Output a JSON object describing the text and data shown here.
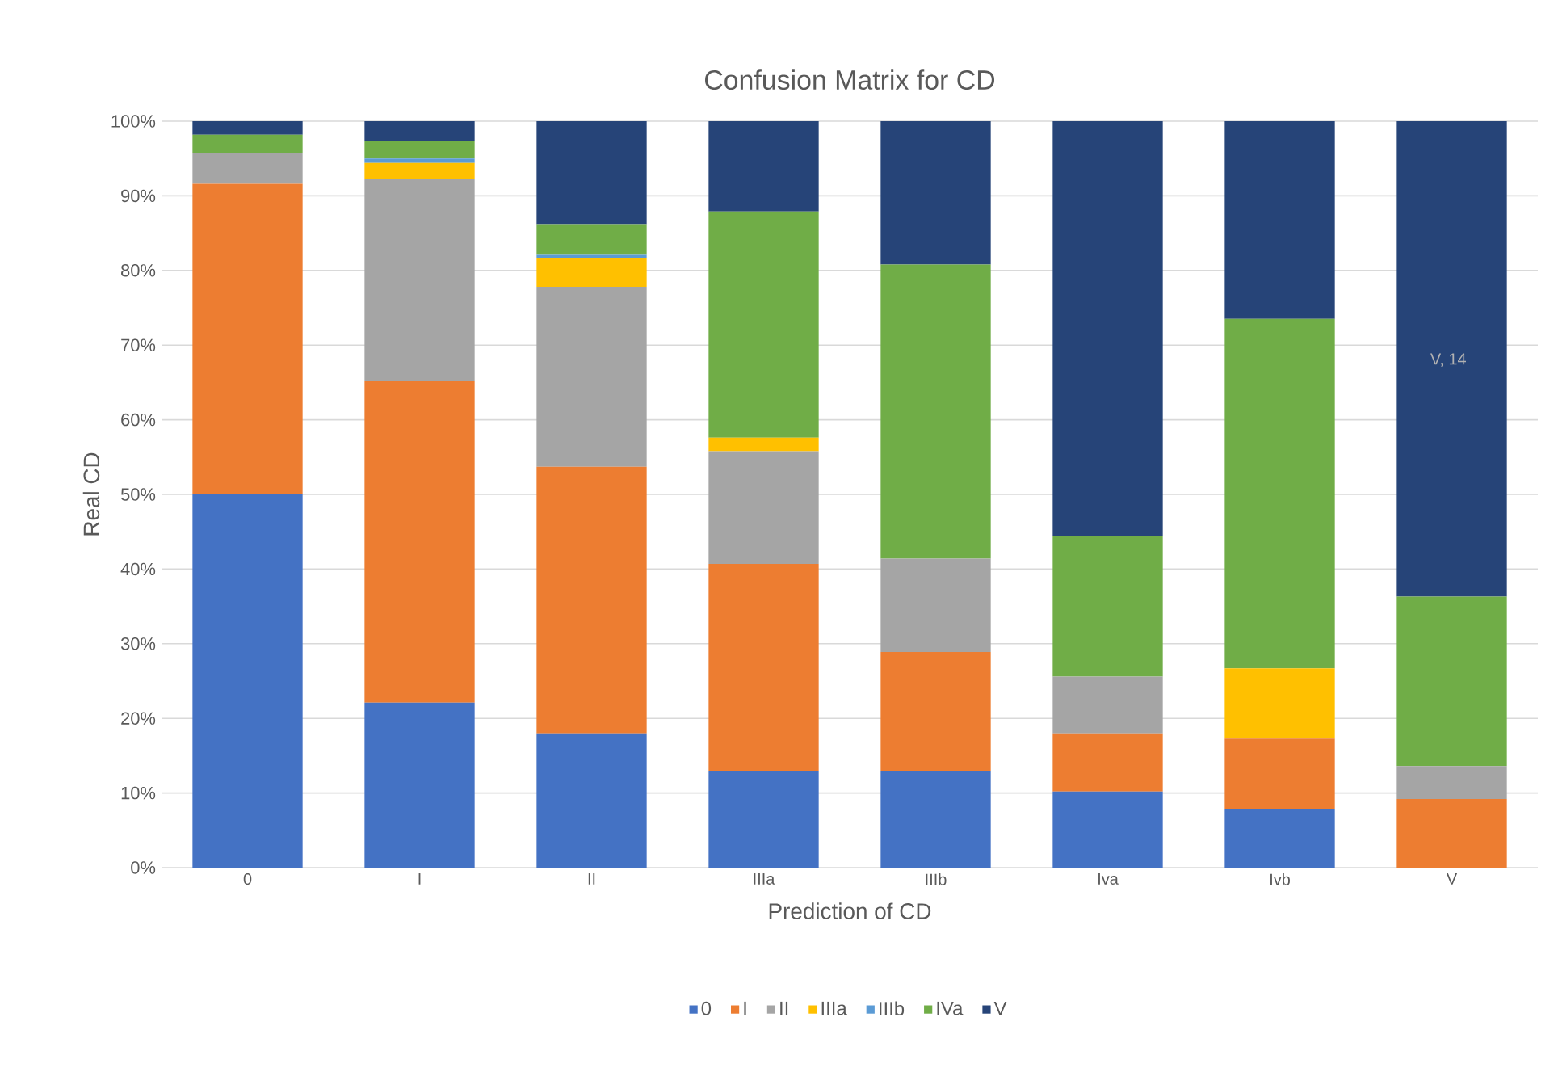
{
  "chart_data": {
    "type": "bar",
    "stacked": true,
    "title": "Confusion Matrix for CD",
    "xlabel": "Prediction of CD",
    "ylabel": "Real CD",
    "categories": [
      "0",
      "I",
      "II",
      "IIIa",
      "IIIb",
      "Iva",
      "Ivb",
      "V"
    ],
    "series": [
      {
        "name": "0",
        "color": "#4472c4",
        "values": [
          50.0,
          22.1,
          18.0,
          13.0,
          13.0,
          10.2,
          7.9,
          0
        ]
      },
      {
        "name": "I",
        "color": "#ed7d31",
        "values": [
          41.6,
          43.1,
          35.7,
          27.7,
          15.9,
          7.8,
          9.4,
          9.2
        ]
      },
      {
        "name": "II",
        "color": "#a5a5a5",
        "values": [
          4.1,
          27.0,
          24.1,
          15.1,
          12.5,
          7.6,
          0,
          4.4
        ]
      },
      {
        "name": "IIIa",
        "color": "#ffc000",
        "values": [
          0,
          2.2,
          3.9,
          1.8,
          0,
          0,
          9.4,
          0
        ]
      },
      {
        "name": "IIIb",
        "color": "#5b9bd5",
        "values": [
          0,
          0.6,
          0.4,
          0,
          0,
          0,
          0,
          0
        ]
      },
      {
        "name": "IVa",
        "color": "#70ad47",
        "values": [
          2.5,
          2.3,
          4.1,
          30.3,
          39.4,
          18.8,
          46.8,
          22.7
        ]
      },
      {
        "name": "V",
        "color": "#264478",
        "values": [
          1.8,
          2.7,
          13.8,
          12.1,
          19.2,
          55.6,
          26.5,
          63.7
        ]
      }
    ],
    "ylim": [
      0,
      100
    ],
    "yticks": [
      {
        "value": 0,
        "label": "0%"
      },
      {
        "value": 10,
        "label": "10%"
      },
      {
        "value": 20,
        "label": "20%"
      },
      {
        "value": 30,
        "label": "30%"
      },
      {
        "value": 40,
        "label": "40%"
      },
      {
        "value": 50,
        "label": "50%"
      },
      {
        "value": 60,
        "label": "60%"
      },
      {
        "value": 70,
        "label": "70%"
      },
      {
        "value": 80,
        "label": "80%"
      },
      {
        "value": 90,
        "label": "90%"
      },
      {
        "value": 100,
        "label": "100%"
      }
    ],
    "grid": "y",
    "legend": "bottom",
    "annotations": [
      "V, 14"
    ]
  }
}
